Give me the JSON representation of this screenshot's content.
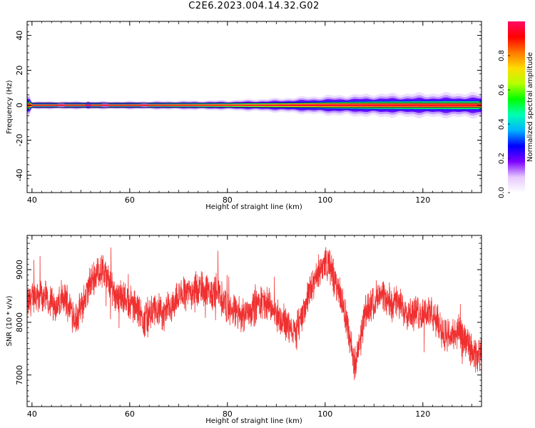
{
  "figure": {
    "title": "C2E6.2023.004.14.32.G02"
  },
  "chart_data": [
    {
      "type": "heatmap",
      "xlabel": "Height of straight line (km)",
      "ylabel": "Frequency (Hz)",
      "xlim": [
        39,
        132
      ],
      "ylim": [
        -50,
        48
      ],
      "xticks": [
        40,
        60,
        80,
        100,
        120
      ],
      "yticks": [
        -40,
        -20,
        0,
        20,
        40
      ],
      "colorbar": {
        "label": "Normalized spectral amplitude",
        "range": [
          0,
          1
        ],
        "ticks": [
          "0.0",
          "0.2",
          "0.4",
          "0.6",
          "0.8"
        ],
        "colormap": [
          "#ffffff",
          "#e6c8ff",
          "#7b00ff",
          "#0000ff",
          "#00b4ff",
          "#00ffb4",
          "#00ff00",
          "#b4ff00",
          "#ffdc00",
          "#ff7800",
          "#ff0000",
          "#ff0a64"
        ]
      },
      "band": {
        "center_hz": 0,
        "description_points": [
          {
            "x": 40,
            "halfwidth_hz": 1.2
          },
          {
            "x": 60,
            "halfwidth_hz": 1.2
          },
          {
            "x": 80,
            "halfwidth_hz": 1.5
          },
          {
            "x": 90,
            "halfwidth_hz": 2.0
          },
          {
            "x": 100,
            "halfwidth_hz": 2.8
          },
          {
            "x": 110,
            "halfwidth_hz": 3.3
          },
          {
            "x": 120,
            "halfwidth_hz": 3.5
          },
          {
            "x": 132,
            "halfwidth_hz": 3.6
          }
        ]
      }
    },
    {
      "type": "line",
      "xlabel": "Height of straight line (km)",
      "ylabel": "SNR (10 * v/v)",
      "xlim": [
        39,
        132
      ],
      "ylim": [
        6400,
        9650
      ],
      "xticks": [
        40,
        60,
        80,
        100,
        120
      ],
      "yticks": [
        7000,
        8000,
        9000
      ],
      "color": "#f03030",
      "series": [
        {
          "x": [
            39,
            41,
            43,
            45,
            47,
            49,
            50,
            52,
            53,
            54,
            55,
            57,
            59,
            61,
            63,
            64,
            65,
            67,
            69,
            71,
            73,
            75,
            77,
            78,
            79,
            81,
            83,
            85,
            87,
            89,
            91,
            93,
            94,
            96,
            98,
            99,
            100,
            101,
            102,
            103,
            104,
            105,
            106,
            107,
            108,
            109,
            111,
            113,
            115,
            117,
            119,
            121,
            123,
            125,
            127,
            129,
            131,
            132
          ],
          "y": [
            8350,
            8550,
            8450,
            8300,
            8450,
            8050,
            8250,
            8750,
            8900,
            9000,
            8900,
            8550,
            8450,
            8300,
            8050,
            8100,
            8250,
            8150,
            8350,
            8550,
            8600,
            8650,
            8500,
            8700,
            8400,
            8200,
            8150,
            8250,
            8400,
            8300,
            8050,
            7900,
            7800,
            8350,
            8800,
            9000,
            9150,
            9050,
            8800,
            8550,
            8200,
            7700,
            7200,
            7500,
            8100,
            8300,
            8500,
            8400,
            8350,
            8200,
            8150,
            8200,
            8000,
            7700,
            7800,
            7600,
            7300,
            7450
          ]
        }
      ]
    }
  ]
}
